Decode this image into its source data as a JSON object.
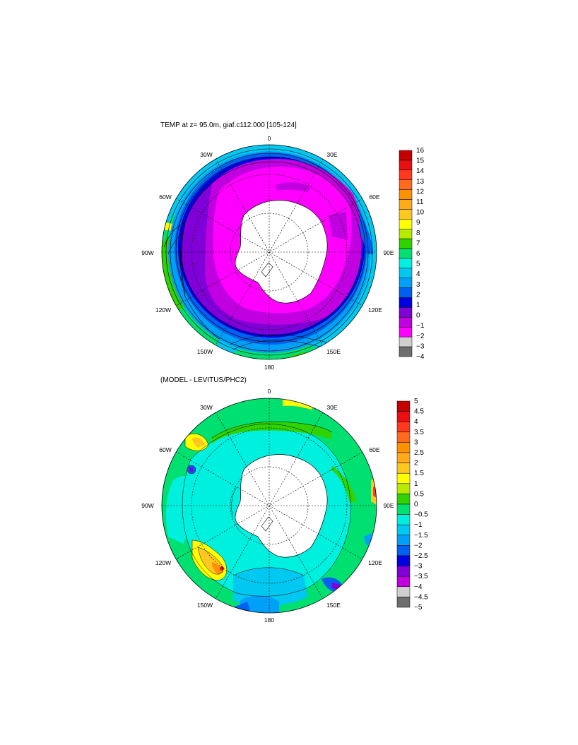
{
  "panel1": {
    "title": "TEMP at z=  95.0m, giaf.c112.000 [105-124]",
    "lon_labels": {
      "top": "0",
      "tl": "30W",
      "tr": "30E",
      "ul": "60W",
      "ur": "60E",
      "l": "90W",
      "r": "90E",
      "ll": "120W",
      "lr": "120E",
      "bl": "150W",
      "br": "150E",
      "bottom": "180"
    },
    "colorbar": {
      "labels": [
        "16",
        "15",
        "14",
        "13",
        "12",
        "11",
        "10",
        "9",
        "8",
        "7",
        "6",
        "5",
        "4",
        "3",
        "2",
        "1",
        "0",
        "−1",
        "−2",
        "−3",
        "−4"
      ],
      "colors": [
        "#c40000",
        "#e81010",
        "#ff3a1e",
        "#ff6a1e",
        "#ff9000",
        "#ffaa1a",
        "#ffc820",
        "#ffff00",
        "#b8ea00",
        "#30d200",
        "#00e070",
        "#00f0e0",
        "#00c8f0",
        "#00a0f8",
        "#0060f0",
        "#0000e0",
        "#8000d8",
        "#c000e0",
        "#ff00ff",
        "#d0d0d0",
        "#6e6e6e"
      ]
    }
  },
  "panel2": {
    "title": "(MODEL - LEVITUS/PHC2)",
    "lon_labels": {
      "top": "0",
      "tl": "30W",
      "tr": "30E",
      "ul": "60W",
      "ur": "60E",
      "l": "90W",
      "r": "90E",
      "ll": "120W",
      "lr": "120E",
      "bl": "150W",
      "br": "150E",
      "bottom": "180"
    },
    "colorbar": {
      "labels": [
        "5",
        "4.5",
        "4",
        "3.5",
        "3",
        "2.5",
        "2",
        "1.5",
        "1",
        "0.5",
        "0",
        "−0.5",
        "−1",
        "−1.5",
        "−2",
        "−2.5",
        "−3",
        "−3.5",
        "−4",
        "−4.5",
        "−5"
      ],
      "colors": [
        "#c40000",
        "#e81010",
        "#ff3a1e",
        "#ff6a1e",
        "#ff9000",
        "#ffaa1a",
        "#ffc820",
        "#ffff00",
        "#b8ea00",
        "#30d200",
        "#00e070",
        "#00f0e0",
        "#00c8f0",
        "#00a0f8",
        "#0060f0",
        "#0000e0",
        "#8000d8",
        "#c000e0",
        "#d0d0d0",
        "#6e6e6e"
      ]
    }
  }
}
